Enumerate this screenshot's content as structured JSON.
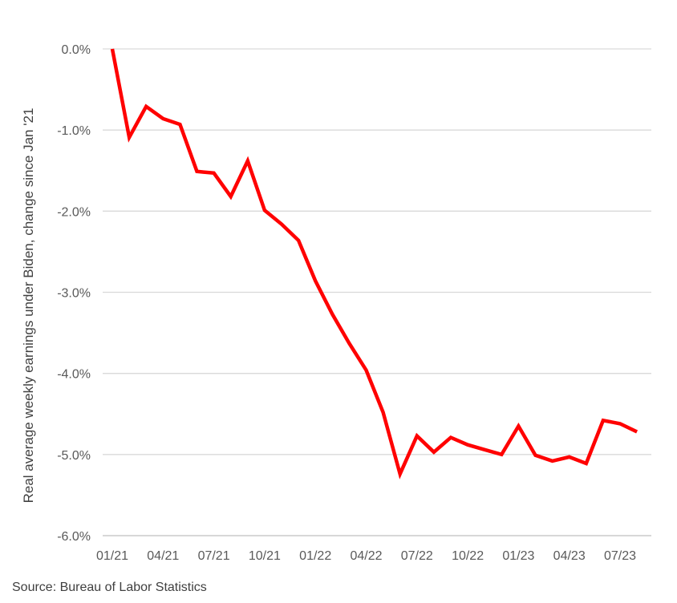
{
  "chart_data": {
    "type": "line",
    "title": "",
    "xlabel": "",
    "ylabel": "Real average weekly earnings under Biden, change since Jan '21",
    "ylim": [
      -6.0,
      0.0
    ],
    "y_ticks": [
      0.0,
      -1.0,
      -2.0,
      -3.0,
      -4.0,
      -5.0,
      -6.0
    ],
    "y_tick_labels": [
      "0.0%",
      "-1.0%",
      "-2.0%",
      "-3.0%",
      "-4.0%",
      "-5.0%",
      "-6.0%"
    ],
    "x_tick_labels": [
      "01/21",
      "04/21",
      "07/21",
      "10/21",
      "01/22",
      "04/22",
      "07/22",
      "10/22",
      "01/23",
      "04/23",
      "07/23"
    ],
    "x_tick_months": [
      "2021-01",
      "2021-04",
      "2021-07",
      "2021-10",
      "2022-01",
      "2022-04",
      "2022-07",
      "2022-10",
      "2023-01",
      "2023-04",
      "2023-07"
    ],
    "grid": true,
    "legend": "none",
    "series": [
      {
        "color": "#ff0000",
        "x": [
          "2021-01",
          "2021-02",
          "2021-03",
          "2021-04",
          "2021-05",
          "2021-06",
          "2021-07",
          "2021-08",
          "2021-09",
          "2021-10",
          "2021-11",
          "2021-12",
          "2022-01",
          "2022-02",
          "2022-03",
          "2022-04",
          "2022-05",
          "2022-06",
          "2022-07",
          "2022-08",
          "2022-09",
          "2022-10",
          "2022-11",
          "2022-12",
          "2023-01",
          "2023-02",
          "2023-03",
          "2023-04",
          "2023-05",
          "2023-06",
          "2023-07",
          "2023-08"
        ],
        "values": [
          0.0,
          -1.09,
          -0.71,
          -0.86,
          -0.93,
          -1.51,
          -1.53,
          -1.82,
          -1.38,
          -1.99,
          -2.16,
          -2.36,
          -2.86,
          -3.27,
          -3.63,
          -3.96,
          -4.48,
          -5.24,
          -4.77,
          -4.97,
          -4.79,
          -4.88,
          -4.94,
          -5.0,
          -4.65,
          -5.01,
          -5.08,
          -5.03,
          -5.11,
          -4.58,
          -4.62,
          -4.72
        ]
      }
    ]
  },
  "source_text": "Source: Bureau of Labor Statistics"
}
